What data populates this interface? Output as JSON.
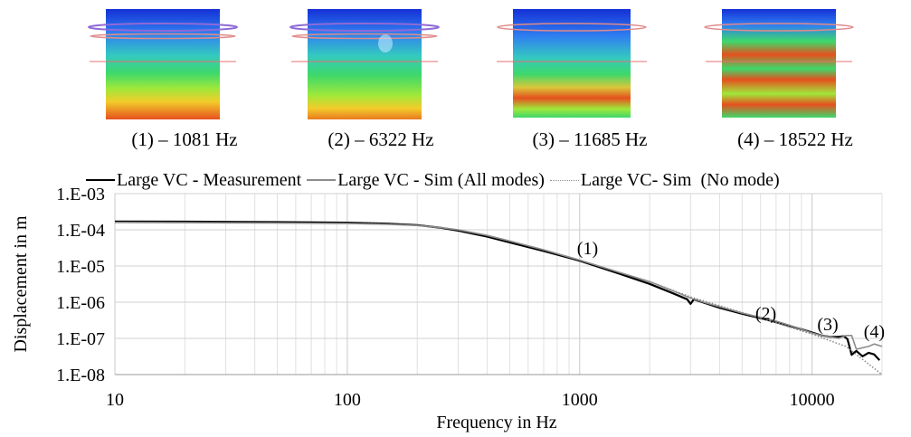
{
  "modes": [
    {
      "caption": "(1) – 1081 Hz"
    },
    {
      "caption": "(2) – 6322 Hz"
    },
    {
      "caption": "(3) – 11685 Hz"
    },
    {
      "caption": "(4) – 18522 Hz"
    }
  ],
  "chart_data": {
    "type": "line",
    "xlabel": "Frequency in Hz",
    "ylabel": "Displacement in m",
    "x_scale": "log",
    "y_scale": "log",
    "xlim": [
      10,
      20000
    ],
    "ylim": [
      1e-08,
      0.001
    ],
    "x_ticks": [
      10,
      100,
      1000,
      10000
    ],
    "x_tick_labels": [
      "10",
      "100",
      "1000",
      "10000"
    ],
    "y_ticks": [
      0.001,
      0.0001,
      1e-05,
      1e-06,
      1e-07,
      1e-08
    ],
    "y_tick_labels": [
      "1.E-03",
      "1.E-04",
      "1.E-05",
      "1.E-06",
      "1.E-07",
      "1.E-08"
    ],
    "grid": true,
    "legend_position": "top",
    "annotations": [
      {
        "label": "(1)",
        "x": 1081,
        "y": 3.2e-05
      },
      {
        "label": "(2)",
        "x": 6322,
        "y": 5e-07
      },
      {
        "label": "(3)",
        "x": 11685,
        "y": 2.5e-07
      },
      {
        "label": "(4)",
        "x": 18522,
        "y": 1.6e-07
      }
    ],
    "series": [
      {
        "name": "Large VC - Measurement",
        "color": "#000000",
        "style": "solid",
        "points": [
          [
            10,
            0.00017
          ],
          [
            20,
            0.000168
          ],
          [
            50,
            0.000163
          ],
          [
            100,
            0.000158
          ],
          [
            150,
            0.000148
          ],
          [
            200,
            0.000135
          ],
          [
            250,
            0.000115
          ],
          [
            300,
            9.5e-05
          ],
          [
            400,
            6.5e-05
          ],
          [
            500,
            4.5e-05
          ],
          [
            700,
            2.6e-05
          ],
          [
            1000,
            1.4e-05
          ],
          [
            1500,
            6e-06
          ],
          [
            2000,
            3.2e-06
          ],
          [
            2500,
            1.8e-06
          ],
          [
            2900,
            1.2e-06
          ],
          [
            3000,
            9e-07
          ],
          [
            3100,
            1.2e-06
          ],
          [
            3300,
            1.05e-06
          ],
          [
            4000,
            7e-07
          ],
          [
            5000,
            4.8e-07
          ],
          [
            6000,
            3.6e-07
          ],
          [
            7000,
            2.8e-07
          ],
          [
            8000,
            2.2e-07
          ],
          [
            9000,
            1.8e-07
          ],
          [
            10000,
            1.45e-07
          ],
          [
            11000,
            1.2e-07
          ],
          [
            12000,
            1.1e-07
          ],
          [
            13000,
            1.1e-07
          ],
          [
            13700,
            1.15e-07
          ],
          [
            14200,
            9.5e-08
          ],
          [
            14800,
            3.5e-08
          ],
          [
            15500,
            4.5e-08
          ],
          [
            16500,
            3.2e-08
          ],
          [
            17500,
            4e-08
          ],
          [
            18500,
            3.6e-08
          ],
          [
            19500,
            2.5e-08
          ]
        ]
      },
      {
        "name": "Large VC - Sim (All modes)",
        "color": "#8c8c8c",
        "style": "solid",
        "points": [
          [
            10,
            0.00016
          ],
          [
            20,
            0.000158
          ],
          [
            50,
            0.000154
          ],
          [
            100,
            0.00015
          ],
          [
            150,
            0.000142
          ],
          [
            200,
            0.000132
          ],
          [
            250,
            0.000116
          ],
          [
            300,
            0.0001
          ],
          [
            400,
            7e-05
          ],
          [
            500,
            4.9e-05
          ],
          [
            700,
            2.8e-05
          ],
          [
            1000,
            1.45e-05
          ],
          [
            1500,
            6.5e-06
          ],
          [
            2000,
            3.7e-06
          ],
          [
            2500,
            2.1e-06
          ],
          [
            3000,
            1.3e-06
          ],
          [
            3500,
            9.5e-07
          ],
          [
            4000,
            7.5e-07
          ],
          [
            5000,
            5e-07
          ],
          [
            6000,
            3.8e-07
          ],
          [
            7000,
            3e-07
          ],
          [
            8000,
            2.3e-07
          ],
          [
            9000,
            1.8e-07
          ],
          [
            10000,
            1.4e-07
          ],
          [
            11000,
            1.2e-07
          ],
          [
            12000,
            1.1e-07
          ],
          [
            13000,
            1e-07
          ],
          [
            14000,
            1.2e-07
          ],
          [
            14800,
            1.2e-07
          ],
          [
            15500,
            5e-08
          ],
          [
            16500,
            5.5e-08
          ],
          [
            17500,
            6e-08
          ],
          [
            18500,
            7e-08
          ],
          [
            20000,
            6e-08
          ]
        ]
      },
      {
        "name": "Large VC- Sim  (No mode)",
        "color": "#8c8c8c",
        "style": "dotted",
        "points": [
          [
            10,
            0.00016
          ],
          [
            20,
            0.000158
          ],
          [
            50,
            0.000154
          ],
          [
            100,
            0.00015
          ],
          [
            150,
            0.000142
          ],
          [
            200,
            0.000132
          ],
          [
            250,
            0.000116
          ],
          [
            300,
            0.0001
          ],
          [
            400,
            7e-05
          ],
          [
            500,
            4.9e-05
          ],
          [
            700,
            2.8e-05
          ],
          [
            1000,
            1.45e-05
          ],
          [
            1500,
            6.5e-06
          ],
          [
            2000,
            3.7e-06
          ],
          [
            3000,
            1.4e-06
          ],
          [
            5000,
            5.2e-07
          ],
          [
            7000,
            2.7e-07
          ],
          [
            10000,
            1.3e-07
          ],
          [
            14000,
            6e-08
          ],
          [
            20000,
            1e-08
          ]
        ]
      }
    ]
  }
}
